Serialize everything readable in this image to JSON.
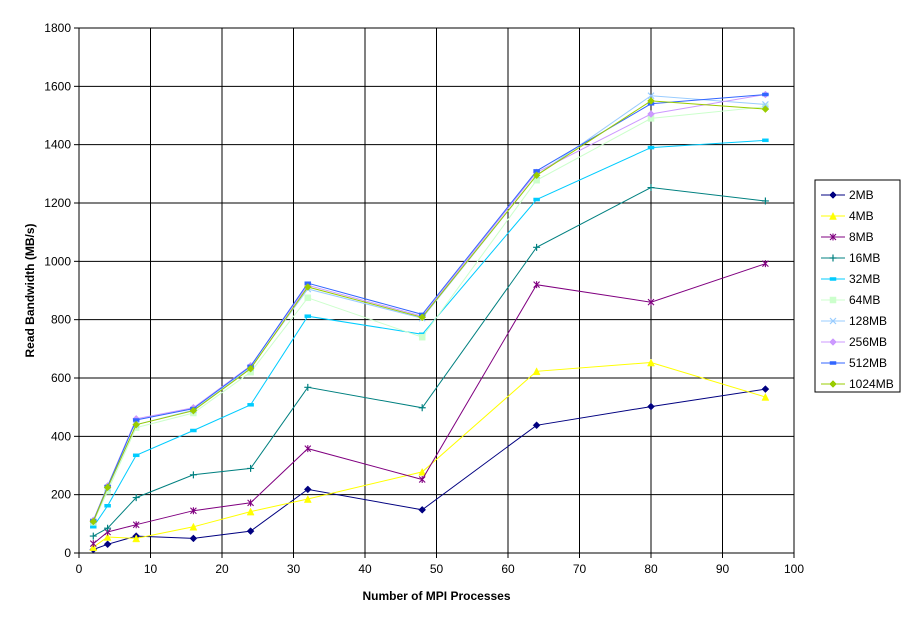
{
  "chart_data": {
    "type": "line",
    "title": "",
    "xlabel": "Number of MPI Processes",
    "ylabel": "Read Bandwidth (MB/s)",
    "xlim": [
      0,
      100
    ],
    "ylim": [
      0,
      1800
    ],
    "xticks": [
      0,
      10,
      20,
      30,
      40,
      50,
      60,
      70,
      80,
      90,
      100
    ],
    "yticks": [
      0,
      200,
      400,
      600,
      800,
      1000,
      1200,
      1400,
      1600,
      1800
    ],
    "grid": true,
    "legend_position": "right",
    "x": [
      2,
      4,
      8,
      16,
      24,
      32,
      48,
      64,
      80,
      96
    ],
    "series": [
      {
        "name": "2MB",
        "color": "#000080",
        "marker": "diamond",
        "values": [
          12,
          30,
          58,
          50,
          75,
          218,
          148,
          438,
          502,
          562
        ]
      },
      {
        "name": "4MB",
        "color": "#FFFF00",
        "marker": "triangle",
        "values": [
          20,
          55,
          50,
          90,
          142,
          185,
          278,
          623,
          653,
          535
        ]
      },
      {
        "name": "8MB",
        "color": "#800080",
        "marker": "star",
        "values": [
          32,
          72,
          97,
          145,
          172,
          358,
          252,
          920,
          860,
          992
        ]
      },
      {
        "name": "16MB",
        "color": "#008080",
        "marker": "plus",
        "values": [
          58,
          85,
          190,
          268,
          290,
          568,
          498,
          1048,
          1253,
          1207
        ]
      },
      {
        "name": "32MB",
        "color": "#00CCFF",
        "marker": "dash",
        "values": [
          90,
          162,
          335,
          420,
          508,
          812,
          750,
          1212,
          1390,
          1415
        ]
      },
      {
        "name": "64MB",
        "color": "#CCFFCC",
        "marker": "square",
        "values": [
          105,
          212,
          430,
          480,
          620,
          875,
          740,
          1278,
          1490,
          1530
        ]
      },
      {
        "name": "128MB",
        "color": "#99CCFF",
        "marker": "x",
        "values": [
          108,
          222,
          440,
          490,
          635,
          905,
          805,
          1295,
          1568,
          1538
        ]
      },
      {
        "name": "256MB",
        "color": "#CC99FF",
        "marker": "diamond",
        "values": [
          112,
          230,
          460,
          498,
          642,
          918,
          812,
          1305,
          1505,
          1572
        ]
      },
      {
        "name": "512MB",
        "color": "#3366FF",
        "marker": "dash",
        "values": [
          110,
          228,
          456,
          495,
          640,
          925,
          818,
          1310,
          1540,
          1572
        ]
      },
      {
        "name": "1024MB",
        "color": "#99CC00",
        "marker": "diamond",
        "values": [
          108,
          225,
          440,
          488,
          632,
          912,
          808,
          1295,
          1550,
          1522
        ]
      }
    ]
  }
}
